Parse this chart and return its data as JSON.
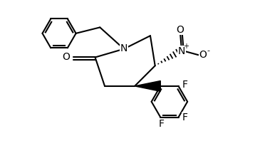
{
  "bg_color": "#ffffff",
  "line_color": "#000000",
  "line_width": 1.5,
  "font_size": 10,
  "fig_width": 3.58,
  "fig_height": 1.98,
  "dpi": 100,
  "xlim": [
    0,
    10.5
  ],
  "ylim": [
    0,
    5.8
  ]
}
